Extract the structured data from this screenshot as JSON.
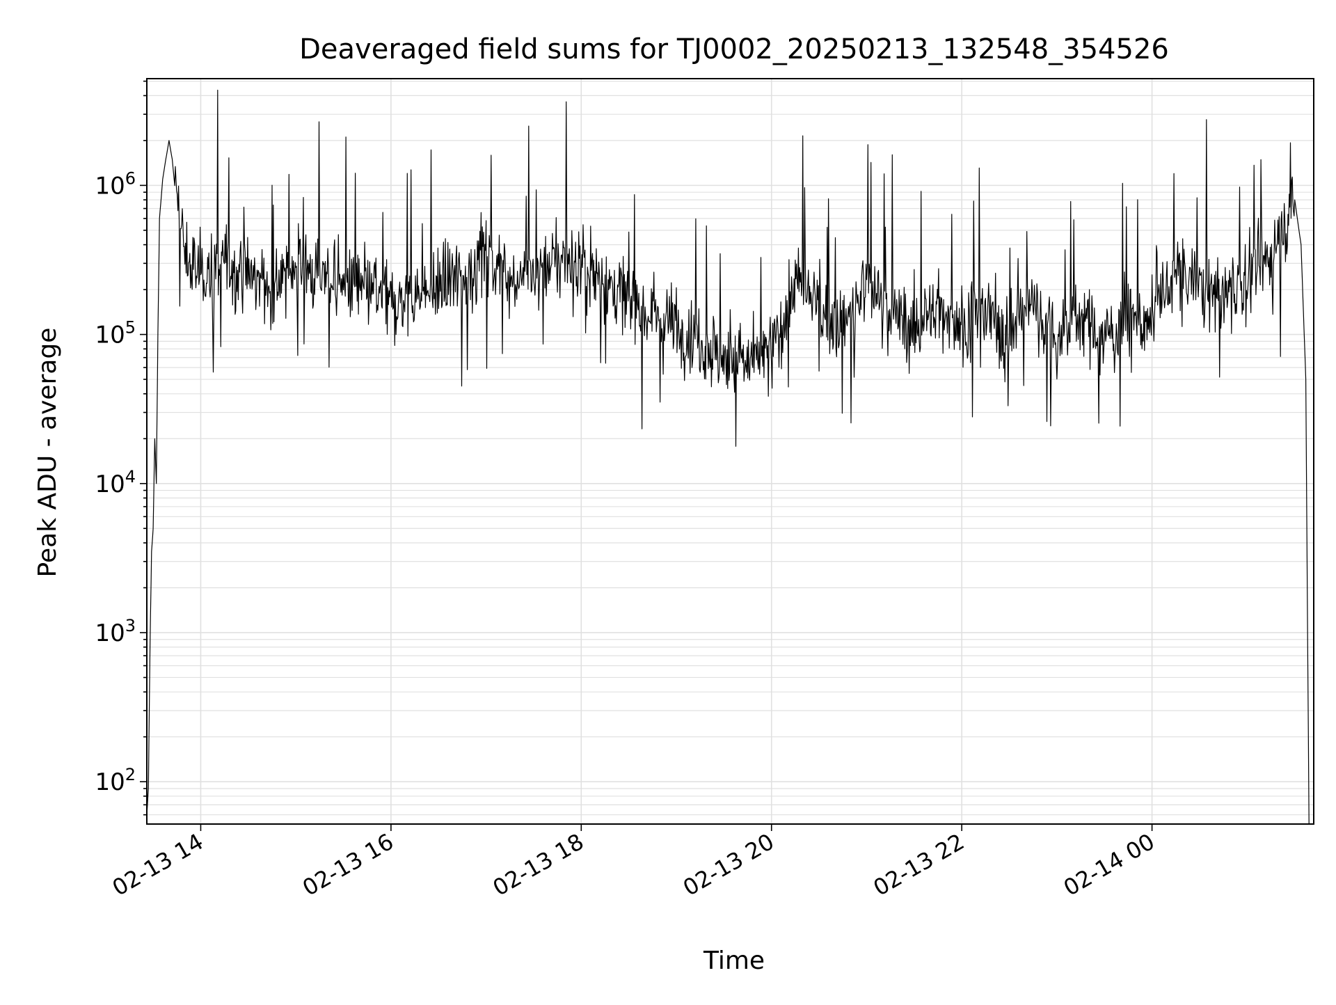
{
  "chart_data": {
    "type": "line",
    "title": "Deaveraged field sums for TJ0002_20250213_132548_354526",
    "xlabel": "Time",
    "ylabel": "Peak ADU - average",
    "yscale": "log",
    "ylim": [
      52,
      5200000
    ],
    "xlim": [
      "2025-02-13 13:26",
      "2025-02-14 01:42"
    ],
    "grid": true,
    "legend": "none",
    "x_ticks": [
      {
        "value": "2025-02-13 14:00",
        "label": "02-13 14"
      },
      {
        "value": "2025-02-13 16:00",
        "label": "02-13 16"
      },
      {
        "value": "2025-02-13 18:00",
        "label": "02-13 18"
      },
      {
        "value": "2025-02-13 20:00",
        "label": "02-13 20"
      },
      {
        "value": "2025-02-13 22:00",
        "label": "02-13 22"
      },
      {
        "value": "2025-02-14 00:00",
        "label": "02-14 00"
      }
    ],
    "y_ticks": [
      {
        "value": 100,
        "base": "10",
        "exp": "2"
      },
      {
        "value": 1000,
        "base": "10",
        "exp": "3"
      },
      {
        "value": 10000,
        "base": "10",
        "exp": "4"
      },
      {
        "value": 100000,
        "base": "10",
        "exp": "5"
      },
      {
        "value": 1000000,
        "base": "10",
        "exp": "6"
      }
    ],
    "colors": {
      "line": "#000000",
      "grid": "#e0e0e0",
      "axes": "#000000"
    },
    "series": [
      {
        "x": [
          "2025-02-13 13:26",
          "2025-02-13 13:27",
          "2025-02-13 13:28",
          "2025-02-13 13:29",
          "2025-02-13 13:30",
          "2025-02-13 13:31",
          "2025-02-13 13:32",
          "2025-02-13 13:33",
          "2025-02-13 13:34",
          "2025-02-13 13:36",
          "2025-02-13 13:38",
          "2025-02-13 13:40",
          "2025-02-13 13:42",
          "2025-02-13 13:44",
          "2025-02-13 13:46",
          "2025-02-13 13:48",
          "2025-02-13 13:50",
          "2025-02-13 13:52",
          "2025-02-13 13:55",
          "2025-02-13 14:00",
          "2025-02-13 14:15",
          "2025-02-13 14:30",
          "2025-02-13 14:45",
          "2025-02-13 15:00",
          "2025-02-13 15:15",
          "2025-02-13 15:30",
          "2025-02-13 15:45",
          "2025-02-13 16:00",
          "2025-02-13 16:15",
          "2025-02-13 16:30",
          "2025-02-13 16:45",
          "2025-02-13 17:00",
          "2025-02-13 17:15",
          "2025-02-13 17:30",
          "2025-02-13 17:45",
          "2025-02-13 18:00",
          "2025-02-13 18:15",
          "2025-02-13 18:30",
          "2025-02-13 18:45",
          "2025-02-13 19:00",
          "2025-02-13 19:15",
          "2025-02-13 19:30",
          "2025-02-13 19:45",
          "2025-02-13 20:00",
          "2025-02-13 20:15",
          "2025-02-13 20:30",
          "2025-02-13 20:45",
          "2025-02-13 21:00",
          "2025-02-13 21:15",
          "2025-02-13 21:30",
          "2025-02-13 21:45",
          "2025-02-13 22:00",
          "2025-02-13 22:15",
          "2025-02-13 22:30",
          "2025-02-13 22:45",
          "2025-02-13 23:00",
          "2025-02-13 23:15",
          "2025-02-13 23:30",
          "2025-02-13 23:45",
          "2025-02-14 00:00",
          "2025-02-14 00:15",
          "2025-02-14 00:30",
          "2025-02-14 00:45",
          "2025-02-14 01:00",
          "2025-02-14 01:15",
          "2025-02-14 01:25",
          "2025-02-14 01:30",
          "2025-02-14 01:34",
          "2025-02-14 01:37",
          "2025-02-14 01:39"
        ],
        "y": [
          60,
          90,
          800,
          3500,
          5000,
          20000,
          10000,
          100000,
          600000,
          1100000,
          1500000,
          2000000,
          1500000,
          900000,
          700000,
          500000,
          350000,
          300000,
          280000,
          260000,
          300000,
          250000,
          200000,
          300000,
          250000,
          220000,
          200000,
          160000,
          180000,
          200000,
          250000,
          350000,
          240000,
          250000,
          320000,
          300000,
          220000,
          170000,
          140000,
          120000,
          90000,
          70000,
          65000,
          75000,
          220000,
          150000,
          110000,
          220000,
          140000,
          110000,
          150000,
          120000,
          140000,
          100000,
          170000,
          90000,
          140000,
          90000,
          130000,
          120000,
          260000,
          220000,
          180000,
          250000,
          320000,
          600000,
          800000,
          400000,
          50000,
          52
        ]
      }
    ]
  }
}
